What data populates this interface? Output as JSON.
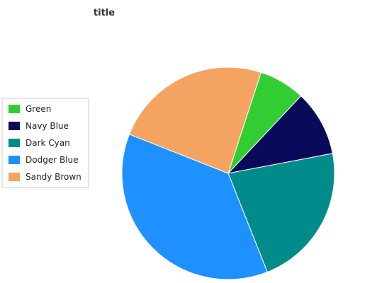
{
  "chart_data": {
    "type": "pie",
    "title": "title",
    "start_angle_deg": 18,
    "direction": "clockwise",
    "legend_position": "left",
    "slices": [
      {
        "label": "Green",
        "value": 7,
        "color": "#32cd32"
      },
      {
        "label": "Navy Blue",
        "value": 10,
        "color": "#0a0a5a"
      },
      {
        "label": "Dark Cyan",
        "value": 22,
        "color": "#008b8b"
      },
      {
        "label": "Dodger Blue",
        "value": 37,
        "color": "#1e90ff"
      },
      {
        "label": "Sandy Brown",
        "value": 24,
        "color": "#f4a460"
      }
    ]
  }
}
